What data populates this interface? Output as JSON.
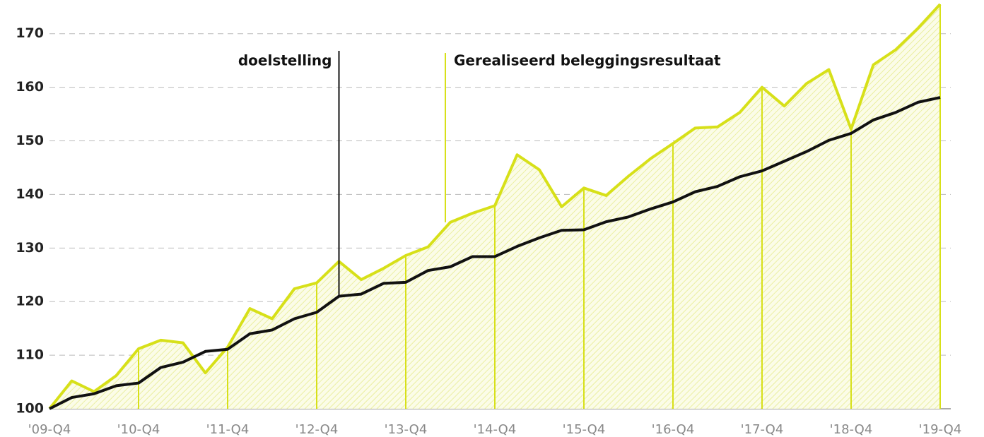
{
  "chart_data": {
    "type": "line",
    "categories": [
      "'09-Q4",
      null,
      null,
      null,
      "'10-Q4",
      null,
      null,
      null,
      "'11-Q4",
      null,
      null,
      null,
      "'12-Q4",
      null,
      null,
      null,
      "'13-Q4",
      null,
      null,
      null,
      "'14-Q4",
      null,
      null,
      null,
      "'15-Q4",
      null,
      null,
      null,
      "'16-Q4",
      null,
      null,
      null,
      "'17-Q4",
      null,
      null,
      null,
      "'18-Q4",
      null,
      null,
      null,
      "'19-Q4"
    ],
    "series": [
      {
        "name": "doelstelling",
        "color": "#111111",
        "values": [
          100,
          102.1,
          102.8,
          104.3,
          104.8,
          107.7,
          108.7,
          110.7,
          111.1,
          114,
          114.7,
          116.8,
          118,
          121,
          121.4,
          123.4,
          123.6,
          125.8,
          126.5,
          128.4,
          128.4,
          130.3,
          131.9,
          133.3,
          133.4,
          134.9,
          135.8,
          137.3,
          138.6,
          140.5,
          141.5,
          143.3,
          144.4,
          146.2,
          148,
          150.1,
          151.4,
          153.9,
          155.3,
          157.2,
          158.1
        ]
      },
      {
        "name": "Gerealiseerd beleggingsresultaat",
        "color": "#d7e019",
        "values": [
          100,
          105.2,
          103.2,
          106.2,
          111.2,
          112.8,
          112.3,
          106.7,
          111.5,
          118.7,
          116.8,
          122.4,
          123.5,
          127.5,
          124.1,
          126.2,
          128.6,
          130.2,
          134.8,
          136.5,
          137.9,
          147.4,
          144.6,
          137.7,
          141.2,
          139.8,
          143.4,
          146.7,
          149.5,
          152.4,
          152.6,
          155.3,
          160,
          156.5,
          160.7,
          163.3,
          152.2,
          164.2,
          167,
          171,
          175.5
        ]
      }
    ],
    "ylim": [
      100,
      175.5
    ],
    "yticks": [
      100,
      110,
      120,
      130,
      140,
      150,
      160,
      170
    ],
    "grid": true
  }
}
